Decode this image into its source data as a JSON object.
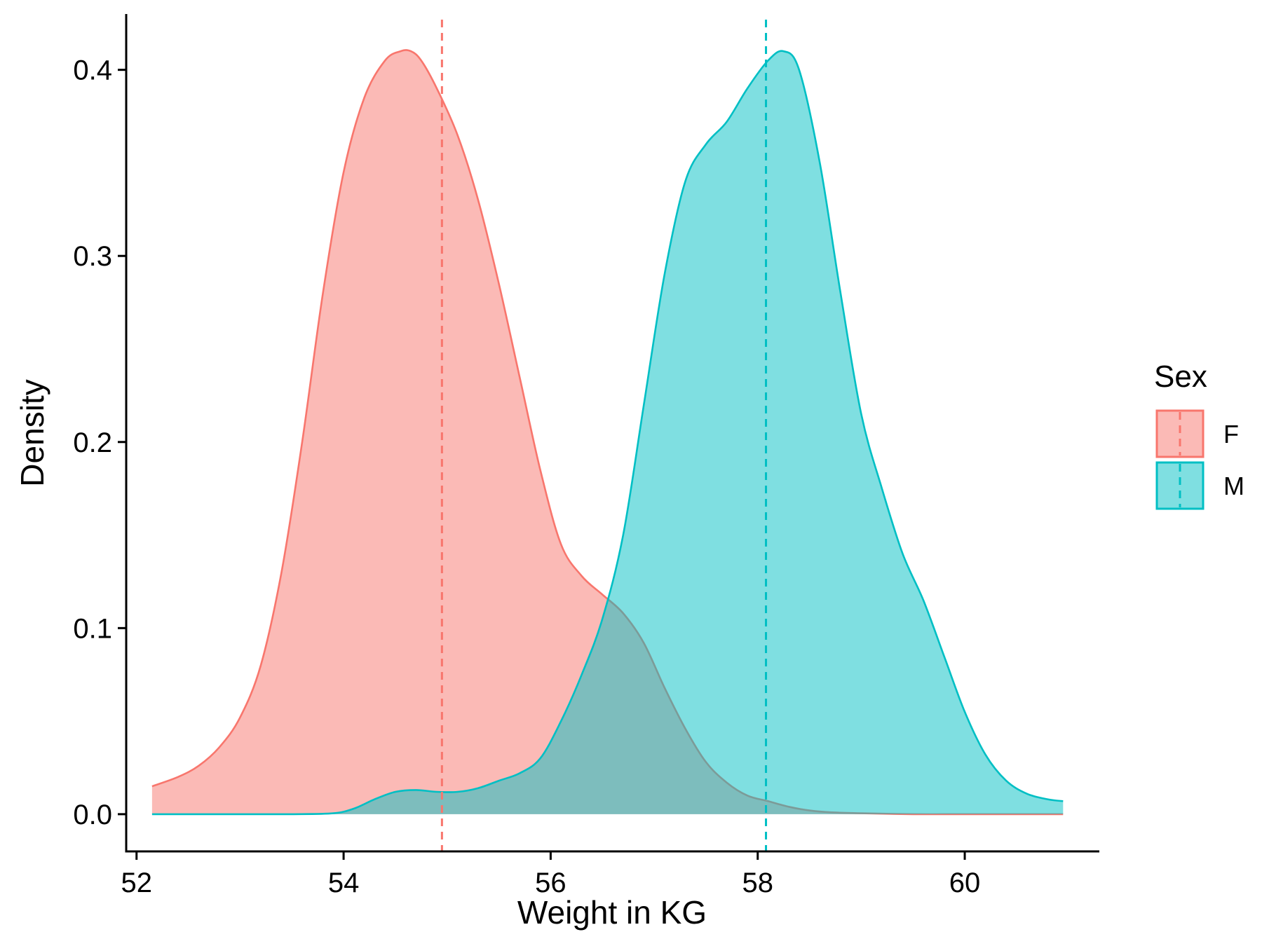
{
  "chart_data": {
    "type": "area",
    "subtype": "density",
    "title": "",
    "xlabel": "Weight in KG",
    "ylabel": "Density",
    "xlim": [
      51.9,
      61.3
    ],
    "ylim": [
      -0.02,
      0.43
    ],
    "xticks": [
      52,
      54,
      56,
      58,
      60
    ],
    "yticks": [
      0.0,
      0.1,
      0.2,
      0.3,
      0.4
    ],
    "ytick_labels": [
      "0.0",
      "0.1",
      "0.2",
      "0.3",
      "0.4"
    ],
    "grid": false,
    "legend": {
      "title": "Sex",
      "position": "right"
    },
    "series": [
      {
        "name": "F",
        "line_color": "#F8766D",
        "fill_color": "#F8766D",
        "mean": 54.95,
        "x": [
          52.15,
          52.4,
          52.6,
          52.8,
          53.0,
          53.2,
          53.4,
          53.6,
          53.8,
          54.0,
          54.2,
          54.4,
          54.55,
          54.65,
          54.75,
          54.9,
          55.1,
          55.3,
          55.5,
          55.7,
          55.9,
          56.1,
          56.3,
          56.5,
          56.7,
          56.9,
          57.1,
          57.3,
          57.5,
          57.7,
          57.9,
          58.1,
          58.3,
          58.5,
          58.7,
          59.0,
          59.5,
          60.0,
          60.5,
          60.95
        ],
        "y": [
          0.015,
          0.02,
          0.026,
          0.036,
          0.052,
          0.08,
          0.13,
          0.2,
          0.28,
          0.345,
          0.385,
          0.405,
          0.41,
          0.41,
          0.405,
          0.39,
          0.365,
          0.33,
          0.285,
          0.235,
          0.185,
          0.145,
          0.128,
          0.118,
          0.108,
          0.092,
          0.068,
          0.046,
          0.028,
          0.017,
          0.01,
          0.007,
          0.004,
          0.002,
          0.001,
          0.0005,
          0.0,
          0.0,
          0.0,
          0.0
        ]
      },
      {
        "name": "M",
        "line_color": "#00BFC4",
        "fill_color": "#00BFC4",
        "mean": 58.08,
        "x": [
          52.15,
          53.0,
          53.5,
          53.9,
          54.1,
          54.3,
          54.5,
          54.7,
          54.9,
          55.1,
          55.3,
          55.5,
          55.7,
          55.9,
          56.1,
          56.3,
          56.5,
          56.7,
          56.9,
          57.1,
          57.3,
          57.5,
          57.7,
          57.9,
          58.1,
          58.25,
          58.4,
          58.6,
          58.8,
          59.0,
          59.2,
          59.4,
          59.6,
          59.8,
          60.0,
          60.2,
          60.4,
          60.6,
          60.8,
          60.95
        ],
        "y": [
          0.0,
          0.0,
          0.0,
          0.0005,
          0.003,
          0.008,
          0.012,
          0.013,
          0.012,
          0.012,
          0.014,
          0.018,
          0.022,
          0.03,
          0.05,
          0.075,
          0.105,
          0.15,
          0.22,
          0.29,
          0.34,
          0.36,
          0.372,
          0.39,
          0.405,
          0.41,
          0.4,
          0.35,
          0.28,
          0.215,
          0.175,
          0.14,
          0.115,
          0.085,
          0.055,
          0.032,
          0.018,
          0.011,
          0.008,
          0.007
        ]
      }
    ]
  },
  "colors": {
    "F": "#F8766D",
    "M": "#00BFC4",
    "overlap": "#7FB8B8",
    "axis": "#000000"
  }
}
